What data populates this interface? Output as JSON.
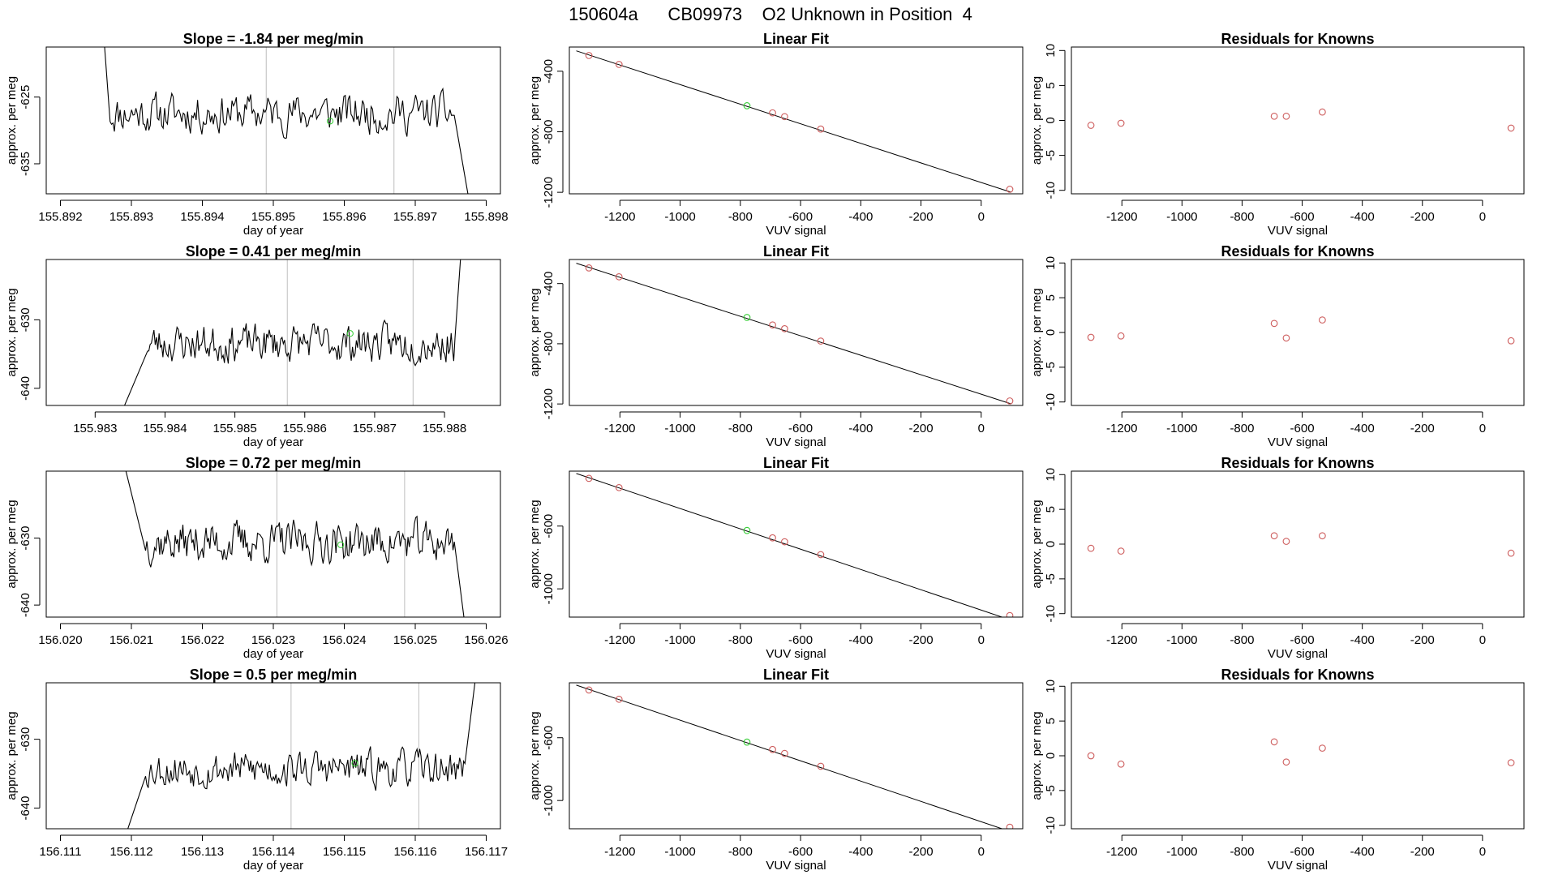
{
  "figure_title": "150604a      CB09973    O2 Unknown in Position  4",
  "colors": {
    "line": "#000000",
    "gridline": "#bebebe",
    "known_point": "#cd5c5c",
    "unknown_point": "#32cd32"
  },
  "chart_data": [
    {
      "type": "line",
      "row": 0,
      "col": 0,
      "title": "Slope =  -1.84  per meg/min",
      "xlabel": "day of year",
      "ylabel": "approx. per meg",
      "xlim": [
        155.8918,
        155.8982
      ],
      "ylim": [
        -639.5,
        -617.5
      ],
      "xticks": [
        155.892,
        155.893,
        155.894,
        155.895,
        155.896,
        155.897,
        155.898
      ],
      "xtick_labels": [
        "155.892",
        "155.893",
        "155.894",
        "155.895",
        "155.896",
        "155.897",
        "155.898"
      ],
      "yticks": [
        -625,
        -635
      ],
      "ytick_labels": [
        "-625",
        "-635"
      ],
      "vlines": [
        155.8949,
        155.8967
      ],
      "signal": {
        "start": 155.8927,
        "end": 155.89755,
        "baseline": -627.4,
        "amplitude": 2.8,
        "lead_in": 0.00015,
        "lead_in_from": -607,
        "tail_out": 0.0002,
        "tail_to": -640,
        "seed": 11
      },
      "marker": {
        "x": 155.8958,
        "y": -628.6
      }
    },
    {
      "type": "scatter",
      "row": 0,
      "col": 1,
      "title": "Linear Fit",
      "xlabel": "VUV signal",
      "ylabel": "approx. per meg",
      "xlim": [
        -1368,
        138
      ],
      "ylim": [
        -1210,
        -240
      ],
      "xticks": [
        -1200,
        -1000,
        -800,
        -600,
        -400,
        -200,
        0
      ],
      "xtick_labels": [
        "-1200",
        "-1000",
        "-800",
        "-600",
        "-400",
        "-200",
        "0"
      ],
      "yticks": [
        -400,
        -800,
        -1200
      ],
      "ytick_labels": [
        "-400",
        "-800",
        "-1200"
      ],
      "fit_line": {
        "x": [
          -1345,
          100
        ],
        "y": [
          -265,
          -1200
        ]
      },
      "known_points": {
        "x": [
          -1303,
          -1203,
          -693,
          -653,
          -533,
          95
        ],
        "y": [
          -296,
          -355,
          -675,
          -700,
          -782,
          -1180
        ]
      },
      "unknown_point": {
        "x": -778,
        "y": -628
      }
    },
    {
      "type": "scatter",
      "row": 0,
      "col": 2,
      "title": "Residuals for Knowns",
      "xlabel": "VUV signal",
      "ylabel": "approx. per meg",
      "xlim": [
        -1368,
        138
      ],
      "ylim": [
        -10.5,
        10.5
      ],
      "xticks": [
        -1200,
        -1000,
        -800,
        -600,
        -400,
        -200,
        0
      ],
      "xtick_labels": [
        "-1200",
        "-1000",
        "-800",
        "-600",
        "-400",
        "-200",
        "0"
      ],
      "yticks": [
        10,
        5,
        0,
        -5,
        -10
      ],
      "ytick_labels": [
        "10",
        "5",
        "0",
        "-5",
        "-10"
      ],
      "points": {
        "x": [
          -1303,
          -1203,
          -693,
          -653,
          -533,
          95
        ],
        "y": [
          -0.7,
          -0.4,
          0.6,
          0.6,
          1.2,
          -1.1
        ]
      }
    },
    {
      "type": "line",
      "row": 1,
      "col": 0,
      "title": "Slope =  0.41  per meg/min",
      "xlabel": "day of year",
      "ylabel": "approx. per meg",
      "xlim": [
        155.9823,
        155.9888
      ],
      "ylim": [
        -642.5,
        -621.2
      ],
      "xticks": [
        155.983,
        155.984,
        155.985,
        155.986,
        155.987,
        155.988
      ],
      "xtick_labels": [
        "155.983",
        "155.984",
        "155.985",
        "155.986",
        "155.987",
        "155.988"
      ],
      "yticks": [
        -630,
        -640
      ],
      "ytick_labels": [
        "-630",
        "-640"
      ],
      "vlines": [
        155.98575,
        155.98755
      ],
      "signal": {
        "start": 155.98375,
        "end": 155.98815,
        "baseline": -633.4,
        "amplitude": 2.6,
        "lead_in": 0.00035,
        "lead_in_from": -643,
        "tail_out": 0.0001,
        "tail_to": -618,
        "seed": 23
      },
      "marker": {
        "x": 155.98665,
        "y": -632.0
      }
    },
    {
      "type": "scatter",
      "row": 1,
      "col": 1,
      "title": "Linear Fit",
      "xlabel": "VUV signal",
      "ylabel": "approx. per meg",
      "xlim": [
        -1368,
        138
      ],
      "ylim": [
        -1210,
        -240
      ],
      "xticks": [
        -1200,
        -1000,
        -800,
        -600,
        -400,
        -200,
        0
      ],
      "xtick_labels": [
        "-1200",
        "-1000",
        "-800",
        "-600",
        "-400",
        "-200",
        "0"
      ],
      "yticks": [
        -400,
        -800,
        -1200
      ],
      "ytick_labels": [
        "-400",
        "-800",
        "-1200"
      ],
      "fit_line": {
        "x": [
          -1345,
          100
        ],
        "y": [
          -265,
          -1200
        ]
      },
      "known_points": {
        "x": [
          -1303,
          -1203,
          -693,
          -653,
          -533,
          95
        ],
        "y": [
          -296,
          -355,
          -675,
          -700,
          -782,
          -1180
        ]
      },
      "unknown_point": {
        "x": -778,
        "y": -625
      }
    },
    {
      "type": "scatter",
      "row": 1,
      "col": 2,
      "title": "Residuals for Knowns",
      "xlabel": "VUV signal",
      "ylabel": "approx. per meg",
      "xlim": [
        -1368,
        138
      ],
      "ylim": [
        -10.5,
        10.5
      ],
      "xticks": [
        -1200,
        -1000,
        -800,
        -600,
        -400,
        -200,
        0
      ],
      "xtick_labels": [
        "-1200",
        "-1000",
        "-800",
        "-600",
        "-400",
        "-200",
        "0"
      ],
      "yticks": [
        10,
        5,
        0,
        -5,
        -10
      ],
      "ytick_labels": [
        "10",
        "5",
        "0",
        "-5",
        "-10"
      ],
      "points": {
        "x": [
          -1303,
          -1203,
          -693,
          -653,
          -533,
          95
        ],
        "y": [
          -0.7,
          -0.5,
          1.3,
          -0.8,
          1.8,
          -1.2
        ]
      }
    },
    {
      "type": "line",
      "row": 2,
      "col": 0,
      "title": "Slope =  0.72  per meg/min",
      "xlabel": "day of year",
      "ylabel": "approx. per meg",
      "xlim": [
        156.0198,
        156.0262
      ],
      "ylim": [
        -641.8,
        -620.0
      ],
      "xticks": [
        156.02,
        156.021,
        156.022,
        156.023,
        156.024,
        156.025,
        156.026
      ],
      "xtick_labels": [
        "156.020",
        "156.021",
        "156.022",
        "156.023",
        "156.024",
        "156.025",
        "156.026"
      ],
      "yticks": [
        -630,
        -640
      ],
      "ytick_labels": [
        "-630",
        "-640"
      ],
      "vlines": [
        156.02305,
        156.02485
      ],
      "signal": {
        "start": 156.0212,
        "end": 156.02555,
        "baseline": -630.6,
        "amplitude": 2.9,
        "lead_in": 0.0003,
        "lead_in_from": -619,
        "tail_out": 0.00015,
        "tail_to": -643,
        "seed": 37
      },
      "marker": {
        "x": 156.02395,
        "y": -631.0
      }
    },
    {
      "type": "scatter",
      "row": 2,
      "col": 1,
      "title": "Linear Fit",
      "xlabel": "VUV signal",
      "ylabel": "approx. per meg",
      "xlim": [
        -1368,
        138
      ],
      "ylim": [
        -1180,
        -250
      ],
      "xticks": [
        -1200,
        -1000,
        -800,
        -600,
        -400,
        -200,
        0
      ],
      "xtick_labels": [
        "-1200",
        "-1000",
        "-800",
        "-600",
        "-400",
        "-200",
        "0"
      ],
      "yticks": [
        -600,
        -1000
      ],
      "ytick_labels": [
        "-600",
        "-1000"
      ],
      "fit_line": {
        "x": [
          -1345,
          100
        ],
        "y": [
          -265,
          -1200
        ]
      },
      "known_points": {
        "x": [
          -1303,
          -1203,
          -693,
          -653,
          -533,
          95
        ],
        "y": [
          -296,
          -355,
          -675,
          -700,
          -782,
          -1170
        ]
      },
      "unknown_point": {
        "x": -778,
        "y": -628
      }
    },
    {
      "type": "scatter",
      "row": 2,
      "col": 2,
      "title": "Residuals for Knowns",
      "xlabel": "VUV signal",
      "ylabel": "approx. per meg",
      "xlim": [
        -1368,
        138
      ],
      "ylim": [
        -10.5,
        10.5
      ],
      "xticks": [
        -1200,
        -1000,
        -800,
        -600,
        -400,
        -200,
        0
      ],
      "xtick_labels": [
        "-1200",
        "-1000",
        "-800",
        "-600",
        "-400",
        "-200",
        "0"
      ],
      "yticks": [
        10,
        5,
        0,
        -5,
        -10
      ],
      "ytick_labels": [
        "10",
        "5",
        "0",
        "-5",
        "-10"
      ],
      "points": {
        "x": [
          -1303,
          -1203,
          -693,
          -653,
          -533,
          95
        ],
        "y": [
          -0.6,
          -1.0,
          1.2,
          0.4,
          1.2,
          -1.3
        ]
      }
    },
    {
      "type": "line",
      "row": 3,
      "col": 0,
      "title": "Slope =  0.5  per meg/min",
      "xlabel": "day of year",
      "ylabel": "approx. per meg",
      "xlim": [
        156.1108,
        156.1172
      ],
      "ylim": [
        -643.0,
        -621.8
      ],
      "xticks": [
        156.111,
        156.112,
        156.113,
        156.114,
        156.115,
        156.116,
        156.117
      ],
      "xtick_labels": [
        "156.111",
        "156.112",
        "156.113",
        "156.114",
        "156.115",
        "156.116",
        "156.117"
      ],
      "yticks": [
        -630,
        -640
      ],
      "ytick_labels": [
        "-630",
        "-640"
      ],
      "vlines": [
        156.11425,
        156.11605
      ],
      "signal": {
        "start": 156.1122,
        "end": 156.1167,
        "baseline": -634.3,
        "amplitude": 2.5,
        "lead_in": 0.00025,
        "lead_in_from": -643,
        "tail_out": 0.00015,
        "tail_to": -621,
        "seed": 53
      },
      "marker": {
        "x": 156.11515,
        "y": -633.5
      }
    },
    {
      "type": "scatter",
      "row": 3,
      "col": 1,
      "title": "Linear Fit",
      "xlabel": "VUV signal",
      "ylabel": "approx. per meg",
      "xlim": [
        -1368,
        138
      ],
      "ylim": [
        -1180,
        -250
      ],
      "xticks": [
        -1200,
        -1000,
        -800,
        -600,
        -400,
        -200,
        0
      ],
      "xtick_labels": [
        "-1200",
        "-1000",
        "-800",
        "-600",
        "-400",
        "-200",
        "0"
      ],
      "yticks": [
        -600,
        -1000
      ],
      "ytick_labels": [
        "-600",
        "-1000"
      ],
      "fit_line": {
        "x": [
          -1345,
          100
        ],
        "y": [
          -265,
          -1200
        ]
      },
      "known_points": {
        "x": [
          -1303,
          -1203,
          -693,
          -653,
          -533,
          95
        ],
        "y": [
          -296,
          -355,
          -675,
          -700,
          -782,
          -1170
        ]
      },
      "unknown_point": {
        "x": -778,
        "y": -628
      }
    },
    {
      "type": "scatter",
      "row": 3,
      "col": 2,
      "title": "Residuals for Knowns",
      "xlabel": "VUV signal",
      "ylabel": "approx. per meg",
      "xlim": [
        -1368,
        138
      ],
      "ylim": [
        -10.5,
        10.5
      ],
      "xticks": [
        -1200,
        -1000,
        -800,
        -600,
        -400,
        -200,
        0
      ],
      "xtick_labels": [
        "-1200",
        "-1000",
        "-800",
        "-600",
        "-400",
        "-200",
        "0"
      ],
      "yticks": [
        10,
        5,
        0,
        -5,
        -10
      ],
      "ytick_labels": [
        "10",
        "5",
        "0",
        "-5",
        "-10"
      ],
      "points": {
        "x": [
          -1303,
          -1203,
          -693,
          -653,
          -533,
          95
        ],
        "y": [
          0.0,
          -1.2,
          2.0,
          -0.9,
          1.1,
          -1.0
        ]
      }
    }
  ]
}
